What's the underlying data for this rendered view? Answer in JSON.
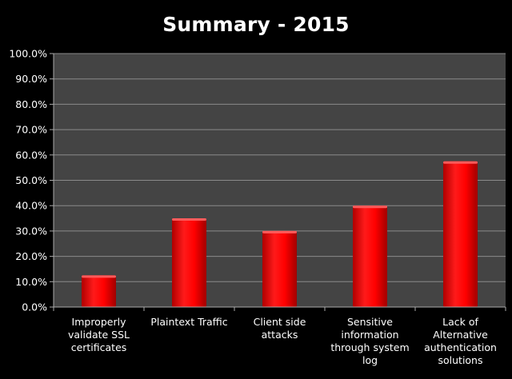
{
  "chart_data": {
    "type": "bar",
    "title": "Summary - 2015",
    "categories": [
      [
        "Improperly",
        "validate SSL",
        "certificates"
      ],
      [
        "Plaintext Traffic"
      ],
      [
        "Client side attacks"
      ],
      [
        "Sensitive",
        "information",
        "through system",
        "log"
      ],
      [
        "Lack of",
        "Alternative",
        "authentication",
        "solutions"
      ]
    ],
    "values": [
      12.5,
      35.0,
      30.0,
      40.0,
      57.5
    ],
    "ylim": [
      0,
      100
    ],
    "yticks": [
      "0.0%",
      "10.0%",
      "20.0%",
      "30.0%",
      "40.0%",
      "50.0%",
      "60.0%",
      "70.0%",
      "80.0%",
      "90.0%",
      "100.0%"
    ],
    "grid": true,
    "xlabel": "",
    "ylabel": "",
    "colors": {
      "bar": "#ff0000",
      "plot_background": "#444444",
      "grid": "#8a8a8a",
      "text": "#ffffff"
    }
  }
}
